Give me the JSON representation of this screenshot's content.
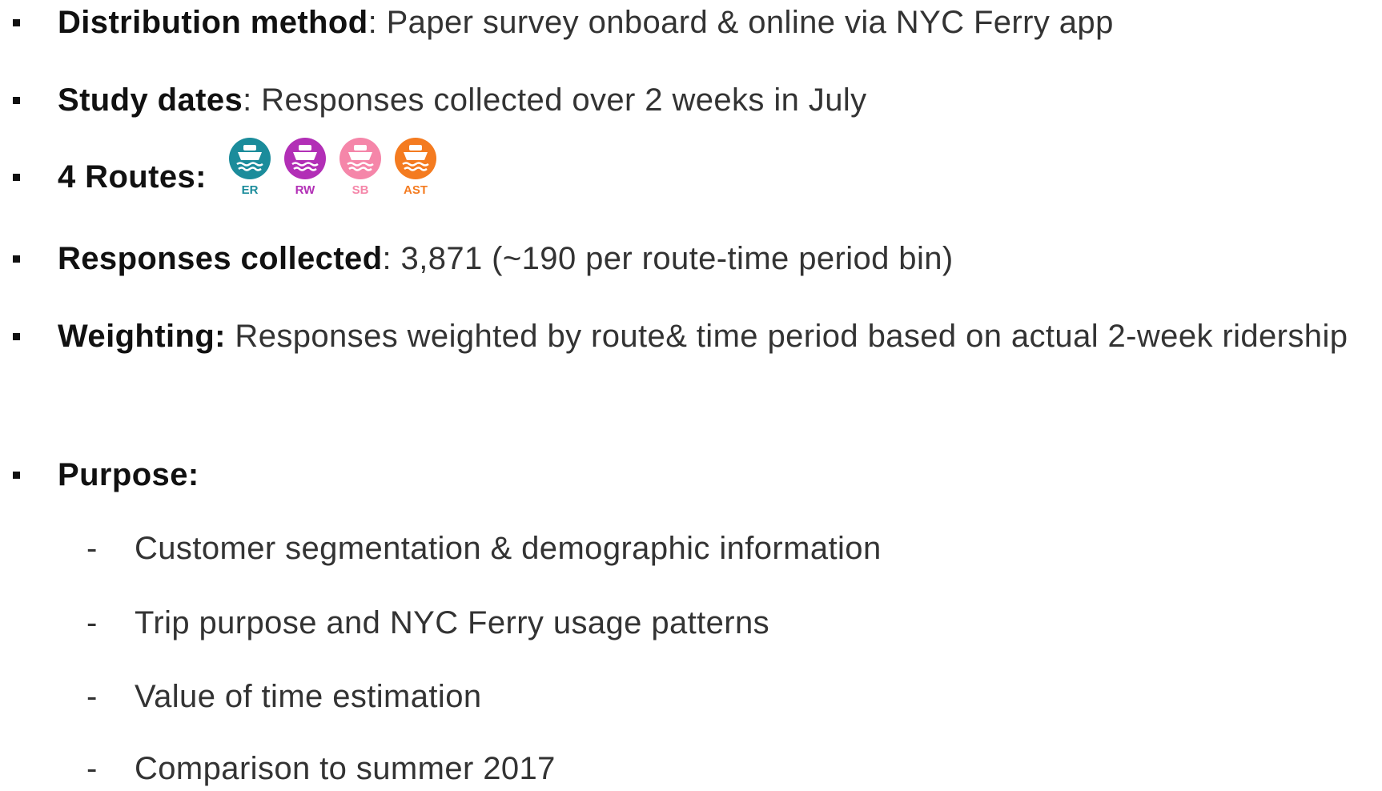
{
  "items": [
    {
      "label": "Distribution method",
      "text": ": Paper survey onboard & online via NYC Ferry app"
    },
    {
      "label": "Study dates",
      "text": ": Responses collected over 2 weeks in July"
    },
    {
      "label": "4 Routes:",
      "text": ""
    },
    {
      "label": "Responses collected",
      "text": ": 3,871 (~190 per route-time period bin)"
    },
    {
      "label": "Weighting:",
      "text": " Responses weighted by route& time period based on actual 2-week ridership"
    },
    {
      "label": "Purpose:",
      "text": ""
    }
  ],
  "routes": [
    {
      "label": "ER",
      "color": "#1b8c9b"
    },
    {
      "label": "RW",
      "color": "#b22fb6"
    },
    {
      "label": "SB",
      "color": "#f586a9"
    },
    {
      "label": "AST",
      "color": "#f47b20"
    }
  ],
  "purpose": [
    "Customer segmentation & demographic information",
    "Trip purpose and NYC Ferry usage patterns",
    "Value of time estimation",
    "Comparison to summer 2017"
  ]
}
